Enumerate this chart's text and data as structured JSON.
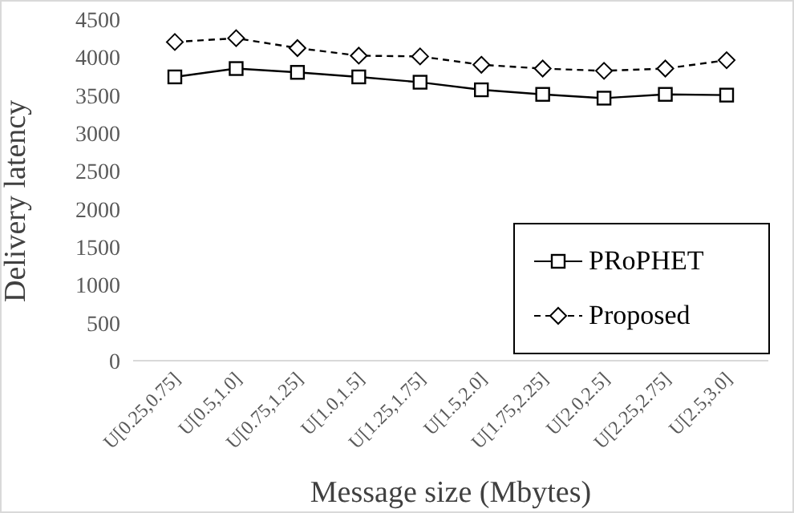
{
  "chart_data": {
    "type": "line",
    "xlabel": "Message size (Mbytes)",
    "ylabel": "Delivery latency",
    "categories": [
      "U[0.25,0.75]",
      "U[0.5,1.0]",
      "U[0.75,1.25]",
      "U[1.0,1.5]",
      "U[1.25,1.75]",
      "U[1.5,2.0]",
      "U[1.75,2.25]",
      "U[2.0,2.5]",
      "U[2.25,2.75]",
      "U[2.5,3.0]"
    ],
    "series": [
      {
        "name": "PRoPHET",
        "color": "#000000",
        "marker": "square",
        "line_style": "solid",
        "values": [
          3740,
          3850,
          3800,
          3740,
          3670,
          3570,
          3510,
          3460,
          3510,
          3500
        ]
      },
      {
        "name": "Proposed",
        "color": "#000000",
        "marker": "diamond",
        "line_style": "dashed",
        "values": [
          4200,
          4250,
          4120,
          4020,
          4010,
          3900,
          3850,
          3820,
          3850,
          3960
        ]
      }
    ],
    "ylim": [
      0,
      4500
    ],
    "yticks": [
      0,
      500,
      1000,
      1500,
      2000,
      2500,
      3000,
      3500,
      4000,
      4500
    ],
    "grid": false,
    "legend": "bottom right"
  }
}
